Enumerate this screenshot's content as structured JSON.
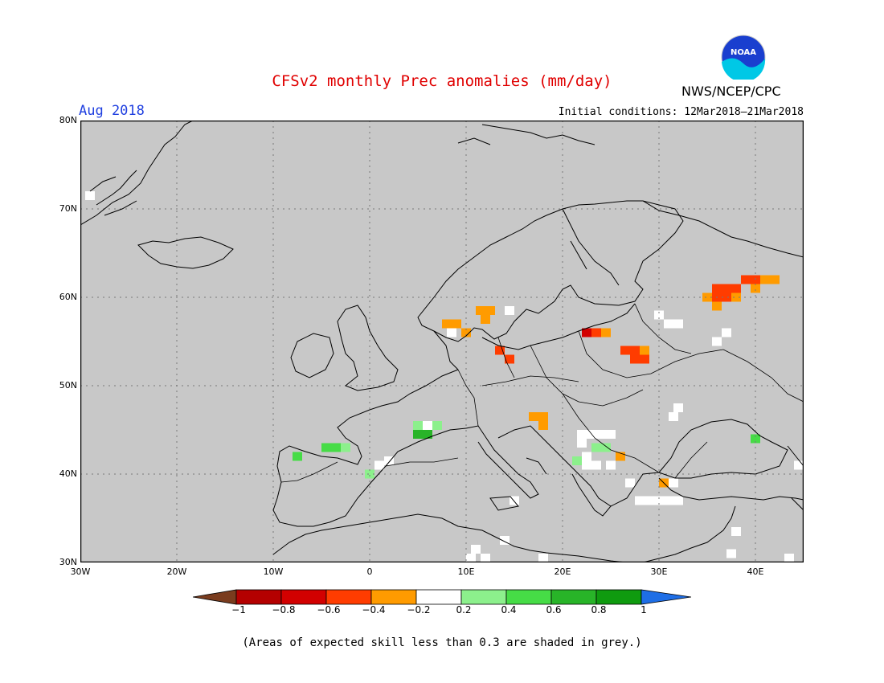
{
  "header": {
    "title": "CFSv2 monthly Prec anomalies (mm/day)",
    "month": "Aug 2018",
    "initial_conditions": "Initial conditions: 12Mar2018–21Mar2018",
    "agency": "NWS/NCEP/CPC",
    "logo_text": "NOAA"
  },
  "map": {
    "lon_range": [
      -30,
      45
    ],
    "lat_range": [
      30,
      80
    ],
    "lat_labels": [
      "80N",
      "70N",
      "60N",
      "50N",
      "40N",
      "30N"
    ],
    "lon_labels": [
      "30W",
      "20W",
      "10W",
      "0",
      "10E",
      "20E",
      "30E",
      "40E"
    ],
    "background_color": "#c8c8c8",
    "anomaly_cells": [
      {
        "lon": -29,
        "lat": 71.5,
        "v": 0
      },
      {
        "lon": 36,
        "lat": 61,
        "v": -0.5
      },
      {
        "lon": 37,
        "lat": 61,
        "v": -0.5
      },
      {
        "lon": 38,
        "lat": 61,
        "v": -0.5
      },
      {
        "lon": 39,
        "lat": 62,
        "v": -0.5
      },
      {
        "lon": 40,
        "lat": 62,
        "v": -0.5
      },
      {
        "lon": 41,
        "lat": 62,
        "v": -0.3
      },
      {
        "lon": 42,
        "lat": 62,
        "v": -0.3
      },
      {
        "lon": 35,
        "lat": 60,
        "v": -0.3
      },
      {
        "lon": 36,
        "lat": 60,
        "v": -0.5
      },
      {
        "lon": 37,
        "lat": 60,
        "v": -0.5
      },
      {
        "lon": 40,
        "lat": 61,
        "v": -0.3
      },
      {
        "lon": 36,
        "lat": 59,
        "v": -0.3
      },
      {
        "lon": 38,
        "lat": 60,
        "v": -0.3
      },
      {
        "lon": 30,
        "lat": 58,
        "v": 0
      },
      {
        "lon": 31,
        "lat": 57,
        "v": 0
      },
      {
        "lon": 32,
        "lat": 57,
        "v": 0
      },
      {
        "lon": 37,
        "lat": 56,
        "v": 0
      },
      {
        "lon": 36,
        "lat": 55,
        "v": 0
      },
      {
        "lon": 11.5,
        "lat": 58.5,
        "v": -0.3
      },
      {
        "lon": 12.5,
        "lat": 58.5,
        "v": -0.3
      },
      {
        "lon": 12,
        "lat": 57.5,
        "v": -0.3
      },
      {
        "lon": 14.5,
        "lat": 58.5,
        "v": 0
      },
      {
        "lon": 8,
        "lat": 57,
        "v": -0.3
      },
      {
        "lon": 9,
        "lat": 57,
        "v": -0.3
      },
      {
        "lon": 8.5,
        "lat": 56,
        "v": 0
      },
      {
        "lon": 10,
        "lat": 56,
        "v": -0.3
      },
      {
        "lon": 13.5,
        "lat": 54,
        "v": -0.5
      },
      {
        "lon": 14.5,
        "lat": 53,
        "v": -0.5
      },
      {
        "lon": 22.5,
        "lat": 56,
        "v": -0.7
      },
      {
        "lon": 23.5,
        "lat": 56,
        "v": -0.5
      },
      {
        "lon": 24.5,
        "lat": 56,
        "v": -0.3
      },
      {
        "lon": 26.5,
        "lat": 54,
        "v": -0.5
      },
      {
        "lon": 27.5,
        "lat": 54,
        "v": -0.5
      },
      {
        "lon": 28.5,
        "lat": 54,
        "v": -0.3
      },
      {
        "lon": 27.5,
        "lat": 53,
        "v": -0.5
      },
      {
        "lon": 28.5,
        "lat": 53,
        "v": -0.5
      },
      {
        "lon": 17,
        "lat": 46.5,
        "v": -0.3
      },
      {
        "lon": 18,
        "lat": 46.5,
        "v": -0.3
      },
      {
        "lon": 18,
        "lat": 45.5,
        "v": -0.3
      },
      {
        "lon": 5,
        "lat": 45.5,
        "v": 0.3
      },
      {
        "lon": 6,
        "lat": 45.5,
        "v": 0
      },
      {
        "lon": 7,
        "lat": 45.5,
        "v": 0.3
      },
      {
        "lon": 5,
        "lat": 44.5,
        "v": 0.7
      },
      {
        "lon": 6,
        "lat": 44.5,
        "v": 0.7
      },
      {
        "lon": -4.5,
        "lat": 43,
        "v": 0.5
      },
      {
        "lon": -3.5,
        "lat": 43,
        "v": 0.5
      },
      {
        "lon": -2.5,
        "lat": 43,
        "v": 0.3
      },
      {
        "lon": -7.5,
        "lat": 42,
        "v": 0.5
      },
      {
        "lon": 0,
        "lat": 40,
        "v": 0.3
      },
      {
        "lon": 1,
        "lat": 41,
        "v": 0
      },
      {
        "lon": 2,
        "lat": 41.5,
        "v": 0
      },
      {
        "lon": 22,
        "lat": 44.5,
        "v": 0
      },
      {
        "lon": 23,
        "lat": 44.5,
        "v": 0
      },
      {
        "lon": 24,
        "lat": 44.5,
        "v": 0
      },
      {
        "lon": 25,
        "lat": 44.5,
        "v": 0
      },
      {
        "lon": 22,
        "lat": 43.5,
        "v": 0
      },
      {
        "lon": 23.5,
        "lat": 43,
        "v": 0.3
      },
      {
        "lon": 24.5,
        "lat": 43,
        "v": 0.3
      },
      {
        "lon": 22.5,
        "lat": 42,
        "v": 0
      },
      {
        "lon": 21.5,
        "lat": 41.5,
        "v": 0.3
      },
      {
        "lon": 22.5,
        "lat": 41,
        "v": 0
      },
      {
        "lon": 23.5,
        "lat": 41,
        "v": 0
      },
      {
        "lon": 25,
        "lat": 41,
        "v": 0
      },
      {
        "lon": 26,
        "lat": 42,
        "v": -0.3
      },
      {
        "lon": 31.5,
        "lat": 46.5,
        "v": 0
      },
      {
        "lon": 32,
        "lat": 47.5,
        "v": 0
      },
      {
        "lon": 40,
        "lat": 44,
        "v": 0.5
      },
      {
        "lon": 44.5,
        "lat": 41,
        "v": 0
      },
      {
        "lon": 27,
        "lat": 39,
        "v": 0
      },
      {
        "lon": 30.5,
        "lat": 39,
        "v": -0.3
      },
      {
        "lon": 31.5,
        "lat": 39,
        "v": 0
      },
      {
        "lon": 28,
        "lat": 37,
        "v": 0
      },
      {
        "lon": 29,
        "lat": 37,
        "v": 0
      },
      {
        "lon": 30,
        "lat": 37,
        "v": 0
      },
      {
        "lon": 31,
        "lat": 37,
        "v": 0
      },
      {
        "lon": 32,
        "lat": 37,
        "v": 0
      },
      {
        "lon": 15,
        "lat": 37,
        "v": 0
      },
      {
        "lon": 11,
        "lat": 31.5,
        "v": 0
      },
      {
        "lon": 12,
        "lat": 30.5,
        "v": 0
      },
      {
        "lon": 10.5,
        "lat": 30.5,
        "v": 0
      },
      {
        "lon": 14,
        "lat": 32.5,
        "v": 0
      },
      {
        "lon": 18,
        "lat": 30.5,
        "v": 0
      },
      {
        "lon": 38,
        "lat": 33.5,
        "v": 0
      },
      {
        "lon": 37.5,
        "lat": 31,
        "v": 0
      },
      {
        "lon": 43.5,
        "lat": 30.5,
        "v": 0
      }
    ]
  },
  "colorbar": {
    "labels": [
      "−1",
      "−0.8",
      "−0.6",
      "−0.4",
      "−0.2",
      "0.2",
      "0.4",
      "0.6",
      "0.8",
      "1"
    ],
    "colors": [
      "#7a3c1e",
      "#b40000",
      "#d20000",
      "#ff3c00",
      "#ff9b00",
      "#ffffff",
      "#8cf08c",
      "#46dc46",
      "#28b428",
      "#0f9b0f",
      "#1e6ee6"
    ]
  },
  "footer": {
    "note": "(Areas of expected skill less than 0.3 are shaded in grey.)"
  }
}
